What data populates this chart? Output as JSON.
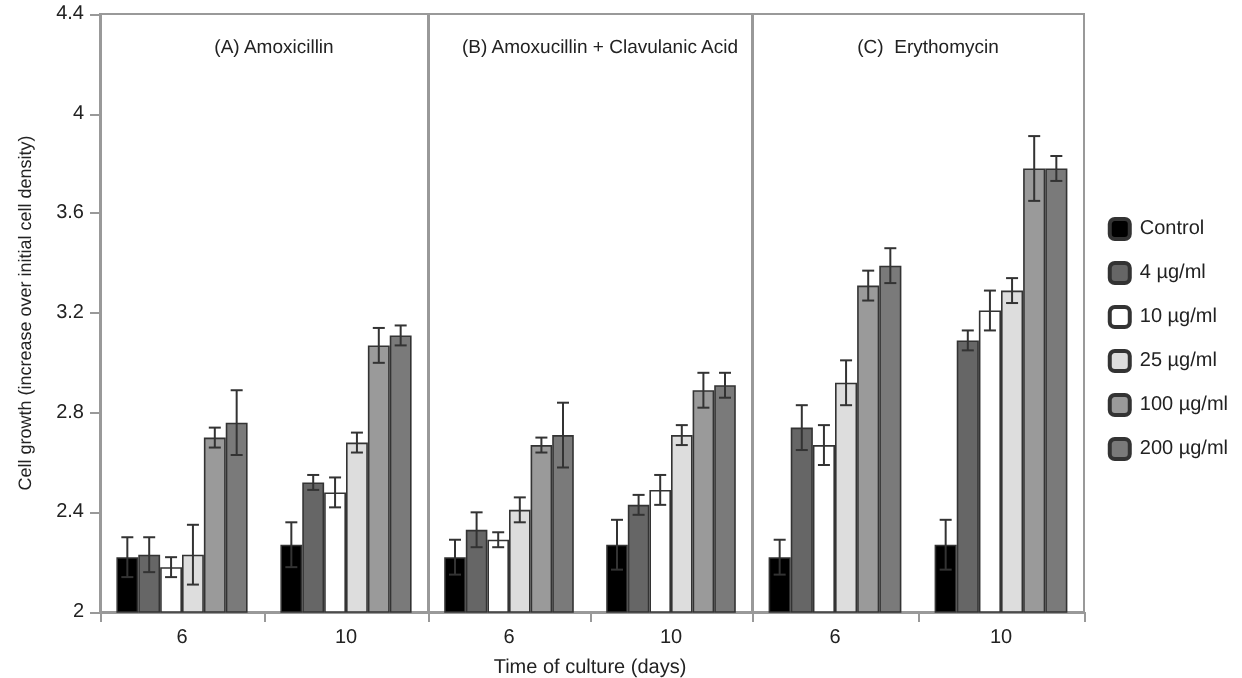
{
  "chart_data": [
    {
      "type": "bar",
      "title": "(A) Amoxicillin",
      "ylabel": "Cell growth (increase over initial cell density)",
      "categories": [
        "6",
        "10"
      ],
      "ylim": [
        2,
        4.4
      ],
      "yticks": [
        2,
        2.4,
        2.8,
        3.2,
        3.6,
        4,
        4.4
      ],
      "grid": false,
      "legend": false,
      "series": [
        {
          "color": "#000000",
          "values": [
            2.22,
            2.27
          ],
          "errors": [
            0.08,
            0.09
          ]
        },
        {
          "color": "#666666",
          "values": [
            2.23,
            2.52
          ],
          "errors": [
            0.07,
            0.03
          ]
        },
        {
          "color": "#ffffff",
          "values": [
            2.18,
            2.48
          ],
          "errors": [
            0.04,
            0.06
          ]
        },
        {
          "color": "#dddddd",
          "values": [
            2.23,
            2.68
          ],
          "errors": [
            0.12,
            0.04
          ]
        },
        {
          "color": "#9a9a9a",
          "values": [
            2.7,
            3.07
          ],
          "errors": [
            0.04,
            0.07
          ]
        },
        {
          "color": "#7a7a7a",
          "values": [
            2.76,
            3.11
          ],
          "errors": [
            0.13,
            0.04
          ]
        }
      ]
    },
    {
      "type": "bar",
      "title": "(B) Amoxucillin + Clavulanic Acid",
      "xlabel": "Time of culture (days)",
      "categories": [
        "6",
        "10"
      ],
      "ylim": [
        2,
        4.4
      ],
      "yticks": [
        2,
        2.4,
        2.8,
        3.2,
        3.6,
        4,
        4.4
      ],
      "tick_labels": "x",
      "grid": false,
      "legend": false,
      "series": [
        {
          "color": "#000000",
          "values": [
            2.22,
            2.27
          ],
          "errors": [
            0.07,
            0.1
          ]
        },
        {
          "color": "#666666",
          "values": [
            2.33,
            2.43
          ],
          "errors": [
            0.07,
            0.04
          ]
        },
        {
          "color": "#ffffff",
          "values": [
            2.29,
            2.49
          ],
          "errors": [
            0.03,
            0.06
          ]
        },
        {
          "color": "#dddddd",
          "values": [
            2.41,
            2.71
          ],
          "errors": [
            0.05,
            0.04
          ]
        },
        {
          "color": "#9a9a9a",
          "values": [
            2.67,
            2.89
          ],
          "errors": [
            0.03,
            0.07
          ]
        },
        {
          "color": "#7a7a7a",
          "values": [
            2.71,
            2.91
          ],
          "errors": [
            0.13,
            0.05
          ]
        }
      ]
    },
    {
      "type": "bar",
      "title": "(C)  Erythomycin",
      "categories": [
        "6",
        "10"
      ],
      "ylim": [
        2,
        4.4
      ],
      "yticks": [
        2,
        2.4,
        2.8,
        3.2,
        3.6,
        4,
        4.4
      ],
      "tick_labels": "x",
      "grid": false,
      "legend": "right",
      "series": [
        {
          "name": "Control",
          "color": "#000000",
          "values": [
            2.22,
            2.27
          ],
          "errors": [
            0.07,
            0.1
          ]
        },
        {
          "name": "4 µg/ml",
          "color": "#666666",
          "values": [
            2.74,
            3.09
          ],
          "errors": [
            0.09,
            0.04
          ]
        },
        {
          "name": "10 µg/ml",
          "color": "#ffffff",
          "values": [
            2.67,
            3.21
          ],
          "errors": [
            0.08,
            0.08
          ]
        },
        {
          "name": "25 µg/ml",
          "color": "#dddddd",
          "values": [
            2.92,
            3.29
          ],
          "errors": [
            0.09,
            0.05
          ]
        },
        {
          "name": "100 µg/ml",
          "color": "#9a9a9a",
          "values": [
            3.31,
            3.78
          ],
          "errors": [
            0.06,
            0.13
          ]
        },
        {
          "name": "200 µg/ml",
          "color": "#7a7a7a",
          "values": [
            3.39,
            3.78
          ],
          "errors": [
            0.07,
            0.05
          ]
        }
      ]
    }
  ]
}
